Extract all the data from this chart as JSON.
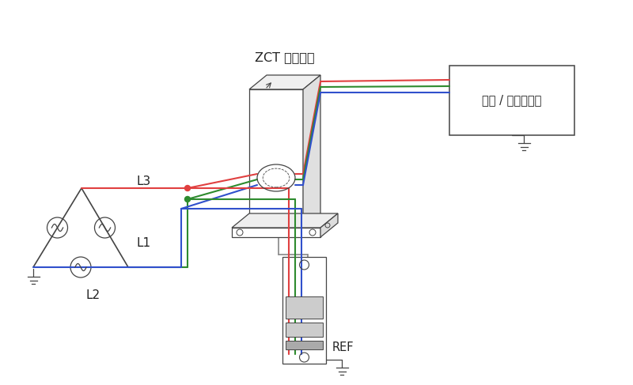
{
  "bg_color": "#ffffff",
  "lc": "#444444",
  "red": "#e04040",
  "grn": "#2e8b2e",
  "blu": "#3050cc",
  "gray": "#888888",
  "tc": "#222222",
  "label_L1": "L1",
  "label_L2": "L2",
  "label_L3": "L3",
  "label_ZCT": "ZCT ユニット",
  "label_equip": "設備 / インバータ",
  "label_REF": "REF",
  "lw_wire": 1.5,
  "lw_draw": 0.9,
  "fs": 11
}
